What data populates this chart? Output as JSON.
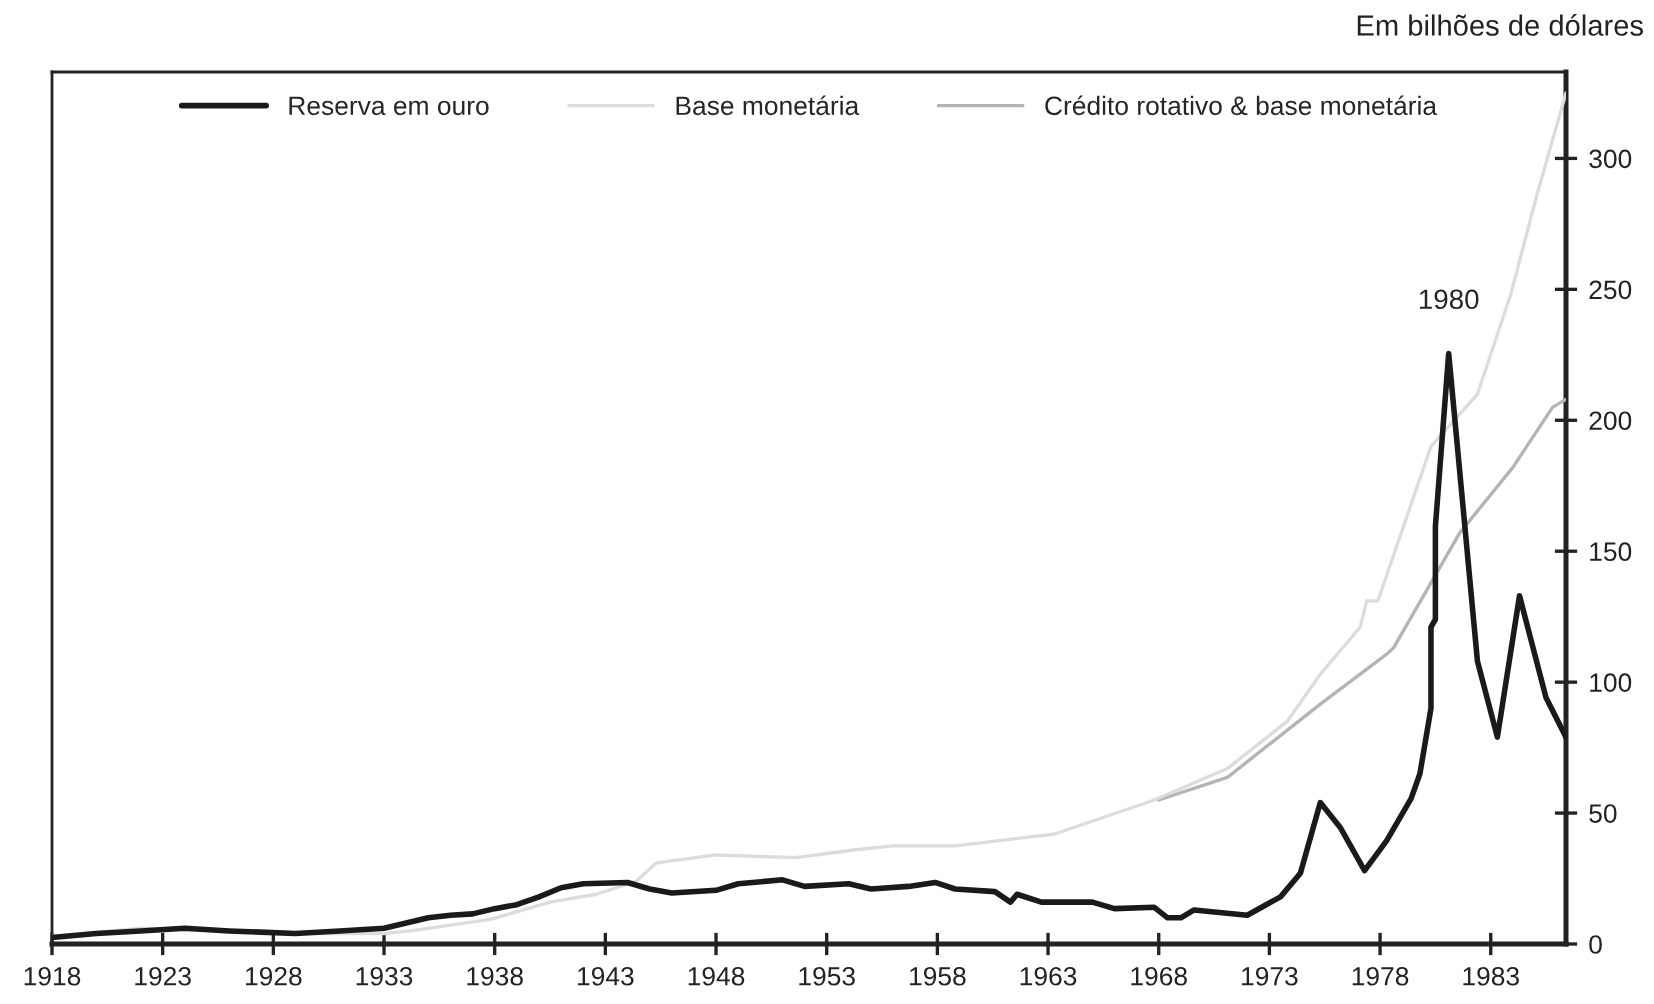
{
  "chart_data": {
    "type": "line",
    "ylabel": "Em bilhões de dólares",
    "xlim": [
      1918,
      1986.4
    ],
    "ylim": [
      0,
      333
    ],
    "xticks": [
      1918,
      1923,
      1928,
      1933,
      1938,
      1943,
      1948,
      1953,
      1958,
      1963,
      1968,
      1973,
      1978,
      1983
    ],
    "yticks": [
      0,
      50,
      100,
      150,
      200,
      250,
      300
    ],
    "grid": false,
    "legend": "top left",
    "marker": "none",
    "line_style": "solid",
    "annotations": [
      {
        "text": "1980",
        "x": 1981.1,
        "y": 225.5
      }
    ],
    "series": [
      {
        "name": "Reserva em ouro",
        "color": "#1a1a1a",
        "x": [
          1918,
          1920,
          1922,
          1924,
          1926,
          1929,
          1931,
          1933,
          1934,
          1935,
          1936,
          1937,
          1938,
          1939,
          1940,
          1941,
          1942,
          1944,
          1945,
          1946,
          1948,
          1949,
          1951,
          1952,
          1954,
          1955,
          1956.7,
          1957.9,
          1958.8,
          1960.6,
          1961.3,
          1961.6,
          1962.7,
          1965,
          1966,
          1967.8,
          1968.4,
          1969,
          1969.6,
          1972,
          1973.5,
          1974.4,
          1975.3,
          1976.2,
          1977.3,
          1978.3,
          1979.4,
          1979.8,
          1980.3,
          1980.3,
          1980.5,
          1980.5,
          1981.1,
          1982.4,
          1983.3,
          1984.3,
          1985.5,
          1986.4
        ],
        "values": [
          2.5,
          4,
          5,
          6,
          5,
          4,
          5,
          6,
          8,
          10,
          11,
          11.5,
          13.5,
          15,
          18,
          21.5,
          23,
          23.5,
          21,
          19.5,
          20.5,
          23,
          24.5,
          22,
          23,
          21,
          22,
          23.5,
          21,
          20,
          16,
          19,
          16,
          16,
          13.5,
          14,
          10,
          10,
          13,
          11,
          18,
          27,
          54,
          44.5,
          28,
          39.5,
          55.5,
          65,
          90,
          121,
          124,
          159.5,
          225.5,
          108,
          79,
          133,
          94,
          79
        ]
      },
      {
        "name": "Base monetária",
        "color": "#dcdcdc",
        "x": [
          1918,
          1922,
          1930,
          1933,
          1934.2,
          1937.8,
          1940.5,
          1942.6,
          1944.4,
          1945.3,
          1948,
          1951.6,
          1954.3,
          1956,
          1958.8,
          1963.3,
          1967.8,
          1971.1,
          1973.8,
          1975.3,
          1977.1,
          1977.4,
          1977.9,
          1980.3,
          1982.4,
          1983.9,
          1985.1,
          1986.4
        ],
        "values": [
          3,
          6,
          4,
          4,
          5,
          9.4,
          16,
          19,
          24,
          31,
          34,
          33,
          36,
          37.5,
          37.5,
          42,
          55,
          67,
          85,
          103,
          121,
          131,
          131,
          190,
          210,
          248,
          286.5,
          325
        ]
      },
      {
        "name": "Crédito rotativo & base monetária",
        "color": "#b4b4b4",
        "x": [
          1968,
          1971.1,
          1975.3,
          1978.3,
          1978.6,
          1981.6,
          1984,
          1985.8,
          1986.4
        ],
        "values": [
          55,
          63.6,
          91.6,
          110.7,
          113,
          157,
          182,
          205,
          208
        ]
      }
    ]
  }
}
